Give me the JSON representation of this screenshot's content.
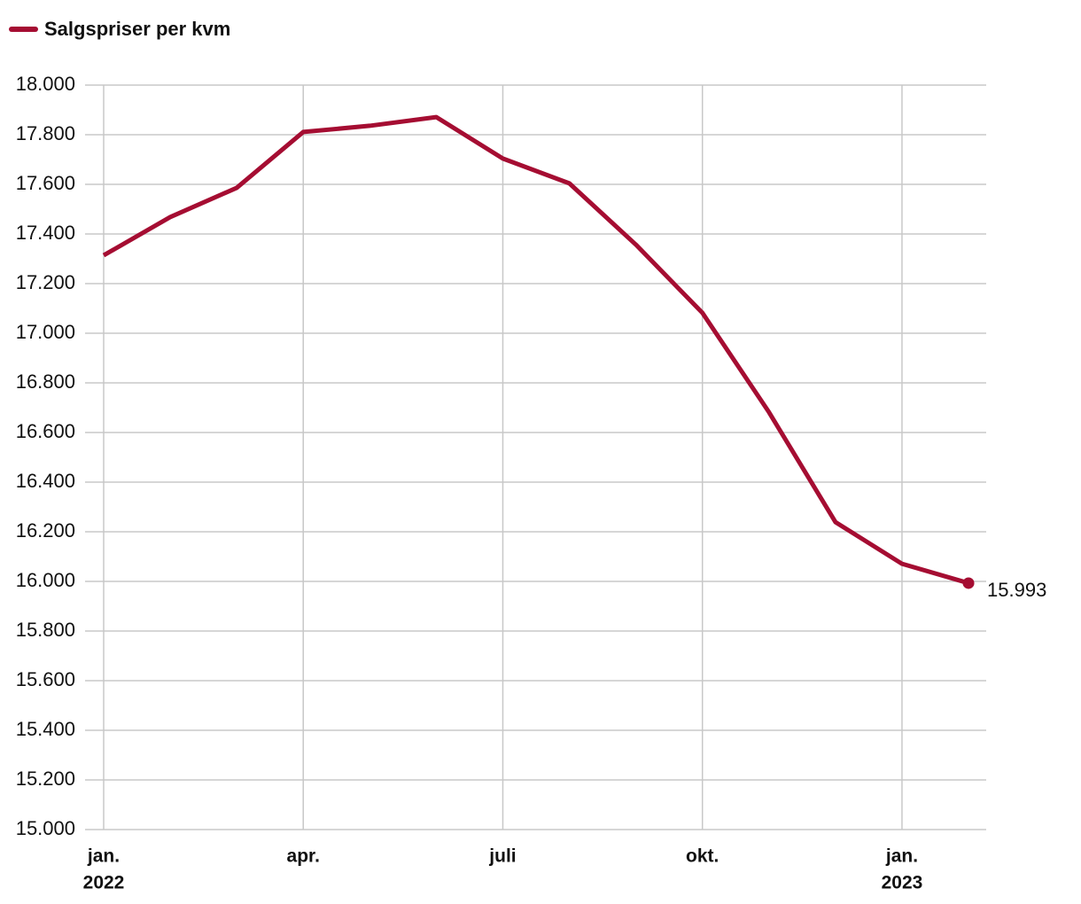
{
  "chart_data": {
    "type": "line",
    "categories": [
      [
        "jan.",
        "2022"
      ],
      null,
      null,
      [
        "apr."
      ],
      null,
      null,
      [
        "juli"
      ],
      null,
      null,
      [
        "okt."
      ],
      null,
      null,
      [
        "jan.",
        "2023"
      ],
      null
    ],
    "series": [
      {
        "name": "Salgspriser per kvm",
        "color": "#a50d32",
        "values": [
          17314,
          17468,
          17586,
          17811,
          17836,
          17871,
          17704,
          17604,
          17357,
          17082,
          16682,
          16239,
          16071,
          15993
        ],
        "value_labels": [
          null,
          null,
          null,
          null,
          null,
          null,
          null,
          null,
          null,
          null,
          null,
          null,
          null,
          "15.993"
        ]
      }
    ],
    "ylim": [
      15000,
      18000
    ],
    "yticks": [
      {
        "value": 15000,
        "label": "15.000"
      },
      {
        "value": 15200,
        "label": "15.200"
      },
      {
        "value": 15400,
        "label": "15.400"
      },
      {
        "value": 15600,
        "label": "15.600"
      },
      {
        "value": 15800,
        "label": "15.800"
      },
      {
        "value": 16000,
        "label": "16.000"
      },
      {
        "value": 16200,
        "label": "16.200"
      },
      {
        "value": 16400,
        "label": "16.400"
      },
      {
        "value": 16600,
        "label": "16.600"
      },
      {
        "value": 16800,
        "label": "16.800"
      },
      {
        "value": 17000,
        "label": "17.000"
      },
      {
        "value": 17200,
        "label": "17.200"
      },
      {
        "value": 17400,
        "label": "17.400"
      },
      {
        "value": 17600,
        "label": "17.600"
      },
      {
        "value": 17800,
        "label": "17.800"
      },
      {
        "value": 18000,
        "label": "18.000"
      }
    ],
    "grid": true,
    "legend": "top-left"
  }
}
